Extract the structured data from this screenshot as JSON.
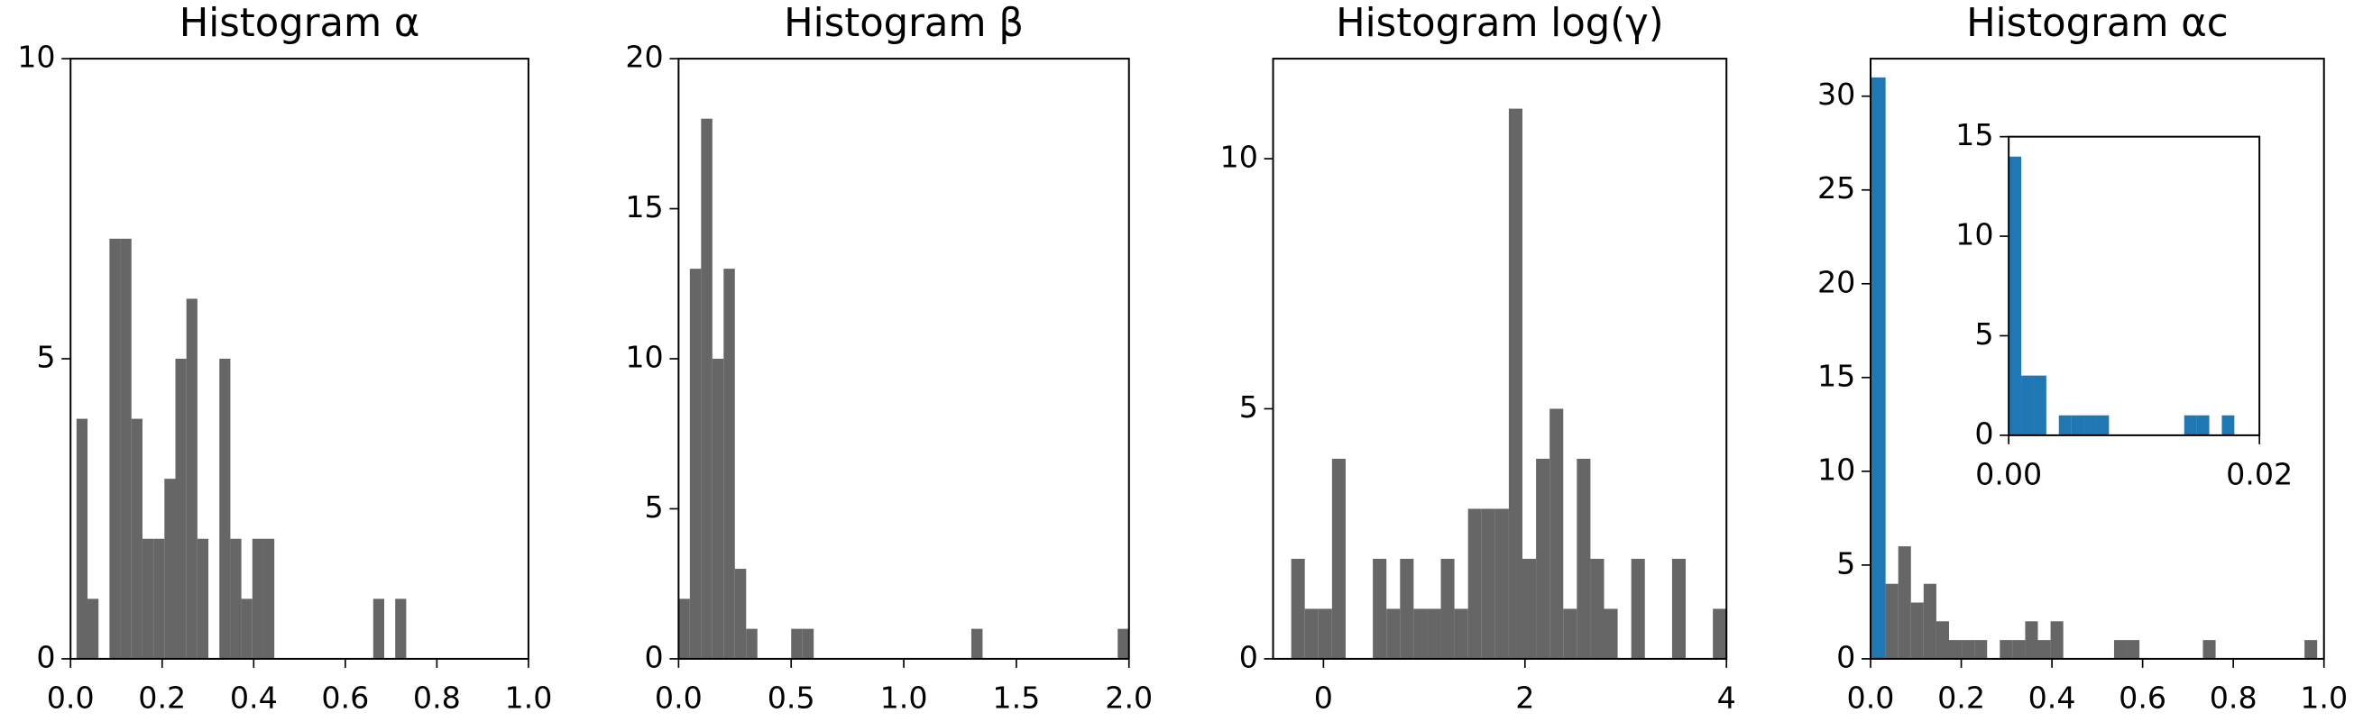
{
  "chart_data": [
    {
      "type": "histogram",
      "title": "Histogram α",
      "series": [
        {
          "color": "#666666",
          "bins": [
            0.013,
            0.037,
            0.061,
            0.085,
            0.109,
            0.133,
            0.157,
            0.181,
            0.205,
            0.229,
            0.253,
            0.277,
            0.301,
            0.325,
            0.349,
            0.373,
            0.397,
            0.421,
            0.445,
            0.469,
            0.493,
            0.517,
            0.541,
            0.565,
            0.589,
            0.613,
            0.637,
            0.661,
            0.685,
            0.709,
            0.733
          ],
          "values": [
            4,
            1,
            0,
            7,
            7,
            4,
            2,
            2,
            3,
            5,
            6,
            2,
            0,
            5,
            2,
            1,
            2,
            2,
            0,
            0,
            0,
            0,
            0,
            0,
            0,
            0,
            0,
            1,
            0,
            1
          ]
        }
      ],
      "xlim": [
        0,
        1
      ],
      "ylim": [
        0,
        10
      ],
      "xticks": [
        {
          "value": 0,
          "label": "0.0"
        },
        0.2,
        0.4,
        0.6,
        0.8,
        {
          "value": 1,
          "label": "1.0"
        }
      ],
      "yticks": [
        0,
        5,
        10
      ]
    },
    {
      "type": "histogram",
      "title": "Histogram β",
      "series": [
        {
          "color": "#666666",
          "bins": [
            0,
            0.05,
            0.1,
            0.15,
            0.2,
            0.25,
            0.3,
            0.35,
            0.4,
            0.45,
            0.5,
            0.55,
            0.6,
            0.65,
            0.7,
            0.75,
            0.8,
            0.85,
            0.9,
            0.95,
            1.0,
            1.05,
            1.1,
            1.15,
            1.2,
            1.25,
            1.3,
            1.35,
            1.4,
            1.45,
            1.5,
            1.55,
            1.6,
            1.65,
            1.7,
            1.75,
            1.8,
            1.85,
            1.9,
            1.95,
            2.0
          ],
          "values": [
            2,
            13,
            18,
            10,
            13,
            3,
            1,
            0,
            0,
            0,
            1,
            1,
            0,
            0,
            0,
            0,
            0,
            0,
            0,
            0,
            0,
            0,
            0,
            0,
            0,
            0,
            1,
            0,
            0,
            0,
            0,
            0,
            0,
            0,
            0,
            0,
            0,
            0,
            0,
            1
          ]
        }
      ],
      "xlim": [
        0,
        2
      ],
      "ylim": [
        0,
        20
      ],
      "xticks": [
        {
          "value": 0,
          "label": "0.0"
        },
        0.5,
        {
          "value": 1,
          "label": "1.0"
        },
        1.5,
        {
          "value": 2,
          "label": "2.0"
        }
      ],
      "yticks": [
        0,
        5,
        10,
        15,
        20
      ]
    },
    {
      "type": "histogram",
      "title": "Histogram log(γ)",
      "series": [
        {
          "color": "#666666",
          "bins": [
            -0.32,
            -0.185,
            -0.05,
            0.085,
            0.22,
            0.355,
            0.49,
            0.625,
            0.76,
            0.895,
            1.03,
            1.165,
            1.3,
            1.435,
            1.57,
            1.705,
            1.84,
            1.975,
            2.11,
            2.245,
            2.38,
            2.515,
            2.65,
            2.785,
            2.92,
            3.055,
            3.19,
            3.325,
            3.46,
            3.595,
            3.73,
            3.865,
            4.0
          ],
          "values": [
            2,
            1,
            1,
            4,
            0,
            0,
            2,
            1,
            2,
            1,
            1,
            2,
            1,
            3,
            3,
            3,
            11,
            2,
            4,
            5,
            1,
            4,
            2,
            1,
            0,
            2,
            0,
            0,
            2,
            0,
            0,
            1
          ]
        }
      ],
      "xlim": [
        -0.5,
        4
      ],
      "ylim": [
        0,
        12
      ],
      "xticks": [
        0,
        2,
        4
      ],
      "yticks": [
        0,
        5,
        10
      ]
    },
    {
      "type": "histogram",
      "title": "Histogram αc",
      "series": [
        {
          "color": "#1f77b4",
          "bins": [
            0,
            0.033
          ],
          "values": [
            31
          ]
        },
        {
          "color": "#666666",
          "bins": [
            0.033,
            0.061,
            0.089,
            0.117,
            0.145,
            0.173,
            0.201,
            0.229,
            0.257,
            0.285,
            0.313,
            0.341,
            0.369,
            0.397,
            0.425,
            0.453,
            0.481,
            0.509,
            0.537,
            0.565,
            0.593,
            0.621,
            0.649,
            0.677,
            0.705,
            0.733,
            0.761,
            0.789,
            0.817,
            0.845,
            0.873,
            0.901,
            0.929,
            0.957,
            0.985
          ],
          "values": [
            4,
            6,
            3,
            4,
            2,
            1,
            1,
            1,
            0,
            1,
            1,
            2,
            1,
            2,
            0,
            0,
            0,
            0,
            1,
            1,
            0,
            0,
            0,
            0,
            0,
            1,
            0,
            0,
            0,
            0,
            0,
            0,
            0,
            1
          ]
        }
      ],
      "xlim": [
        0,
        1
      ],
      "ylim": [
        0,
        32
      ],
      "xticks": [
        {
          "value": 0,
          "label": "0.0"
        },
        0.2,
        0.4,
        0.6,
        0.8,
        {
          "value": 1,
          "label": "1.0"
        }
      ],
      "yticks": [
        0,
        5,
        10,
        15,
        20,
        25,
        30
      ]
    },
    {
      "type": "histogram",
      "series": [
        {
          "color": "#1f77b4",
          "bins": [
            0,
            0.001,
            0.002,
            0.003,
            0.004,
            0.005,
            0.006,
            0.007,
            0.008,
            0.009,
            0.01,
            0.011,
            0.012,
            0.013,
            0.014,
            0.015,
            0.016,
            0.017,
            0.018,
            0.019
          ],
          "values": [
            14,
            3,
            3,
            0,
            1,
            1,
            1,
            1,
            0,
            0,
            0,
            0,
            0,
            0,
            1,
            1,
            0,
            1,
            0
          ]
        }
      ],
      "xlim": [
        0,
        0.02
      ],
      "ylim": [
        0,
        15
      ],
      "xticks": [
        {
          "value": 0,
          "label": "0.00"
        },
        {
          "value": 0.02,
          "label": "0.02"
        }
      ],
      "yticks": [
        0,
        5,
        10,
        15
      ]
    }
  ]
}
